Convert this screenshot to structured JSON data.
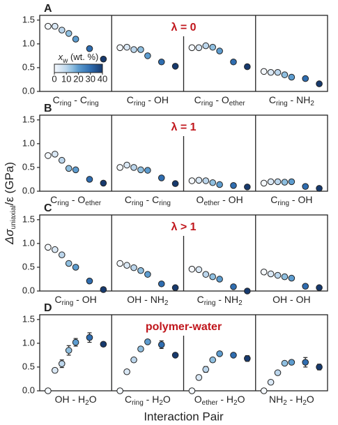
{
  "chart_data": {
    "type": "scatter",
    "ylabel": [
      "Δσ",
      "uniaxial",
      "/ε (GPa)"
    ],
    "xlabel": "Interaction Pair",
    "x_w": [
      0,
      5,
      10,
      15,
      20,
      30,
      40
    ],
    "xlim": [
      -6,
      46
    ],
    "colors": [
      "#f4f8fd",
      "#dae8f5",
      "#bcd6ec",
      "#8fbfe0",
      "#5d9ccf",
      "#2f6db0",
      "#173a6e"
    ],
    "marker_edge": "#222222",
    "annotation_color": "#c0161c",
    "colorbar": {
      "label": [
        "x",
        "w",
        " (wt. %)"
      ],
      "lim": [
        0,
        40
      ],
      "ticks": [
        0,
        10,
        20,
        30,
        40
      ]
    },
    "ylim": [
      0,
      1.6
    ],
    "yticks": [
      {
        "value": 0,
        "label": "0.0"
      },
      {
        "value": 0.5,
        "label": "0.5"
      },
      {
        "value": 1.0,
        "label": "1.0"
      },
      {
        "value": 1.5,
        "label": "1.5"
      }
    ],
    "rows": [
      {
        "letter": "A",
        "annotation": "λ = 0",
        "panels": [
          {
            "label": [
              "C",
              "ring",
              " - C",
              "ring"
            ],
            "values": [
              1.37,
              1.37,
              1.29,
              1.22,
              1.1,
              0.9,
              0.68
            ]
          },
          {
            "label": [
              "C",
              "ring",
              " - OH"
            ],
            "values": [
              0.92,
              0.93,
              0.88,
              0.88,
              0.75,
              0.62,
              0.53
            ]
          },
          {
            "label": [
              "C",
              "ring",
              " - O",
              "ether"
            ],
            "values": [
              0.92,
              0.92,
              0.96,
              0.93,
              0.85,
              0.62,
              0.52
            ]
          },
          {
            "label": [
              "C",
              "ring",
              " - NH",
              "2"
            ],
            "values": [
              0.42,
              0.4,
              0.4,
              0.35,
              0.3,
              0.27,
              0.16
            ]
          }
        ]
      },
      {
        "letter": "B",
        "annotation": "λ = 1",
        "panels": [
          {
            "label": [
              "C",
              "ring",
              " - O",
              "ether"
            ],
            "values": [
              0.75,
              0.78,
              0.65,
              0.48,
              0.45,
              0.25,
              0.17
            ]
          },
          {
            "label": [
              "C",
              "ring",
              " - C",
              "ring"
            ],
            "values": [
              0.5,
              0.55,
              0.5,
              0.45,
              0.44,
              0.28,
              0.16
            ]
          },
          {
            "label": [
              "O",
              "ether",
              " - OH"
            ],
            "values": [
              0.22,
              0.23,
              0.22,
              0.18,
              0.14,
              0.12,
              0.09
            ]
          },
          {
            "label": [
              "C",
              "ring",
              " - OH"
            ],
            "values": [
              0.17,
              0.2,
              0.2,
              0.19,
              0.2,
              0.1,
              0.06
            ]
          }
        ]
      },
      {
        "letter": "C",
        "annotation": "λ > 1",
        "panels": [
          {
            "label": [
              "C",
              "ring",
              " - OH"
            ],
            "values": [
              0.92,
              0.87,
              0.76,
              0.58,
              0.5,
              0.21,
              0.03
            ]
          },
          {
            "label": [
              "OH - NH",
              "2"
            ],
            "values": [
              0.58,
              0.54,
              0.49,
              0.43,
              0.35,
              0.15,
              0.07
            ]
          },
          {
            "label": [
              "C",
              "ring",
              " - NH",
              "2"
            ],
            "values": [
              0.46,
              0.45,
              0.35,
              0.3,
              0.25,
              0.09,
              0.0
            ]
          },
          {
            "label": [
              "OH - OH"
            ],
            "values": [
              0.4,
              0.36,
              0.33,
              0.3,
              0.27,
              0.1,
              0.07
            ]
          }
        ]
      },
      {
        "letter": "D",
        "annotation": "polymer-water",
        "panels": [
          {
            "label": [
              "OH - H",
              "2",
              "O"
            ],
            "values": [
              0,
              0.43,
              0.57,
              0.85,
              1.02,
              1.12,
              0.98
            ],
            "errors": [
              0,
              0,
              0.08,
              0.1,
              0.08,
              0.1,
              0.03
            ]
          },
          {
            "label": [
              "C",
              "ring",
              " - H",
              "2",
              "O"
            ],
            "values": [
              0,
              0.4,
              0.65,
              0.88,
              1.03,
              0.97,
              0.75
            ],
            "errors": [
              0,
              0,
              0,
              0,
              0,
              0.08,
              0.04
            ]
          },
          {
            "label": [
              "O",
              "ether",
              " - H",
              "2",
              "O"
            ],
            "values": [
              0,
              0.28,
              0.45,
              0.65,
              0.78,
              0.75,
              0.68
            ],
            "errors": [
              0,
              0.05,
              0.06,
              0.04,
              0,
              0,
              0.06
            ]
          },
          {
            "label": [
              "NH",
              "2",
              " - H",
              "2",
              "O"
            ],
            "values": [
              0,
              0.18,
              0.38,
              0.58,
              0.6,
              0.6,
              0.5
            ],
            "errors": [
              0,
              0,
              0,
              0,
              0,
              0.1,
              0.06
            ]
          }
        ]
      }
    ]
  }
}
